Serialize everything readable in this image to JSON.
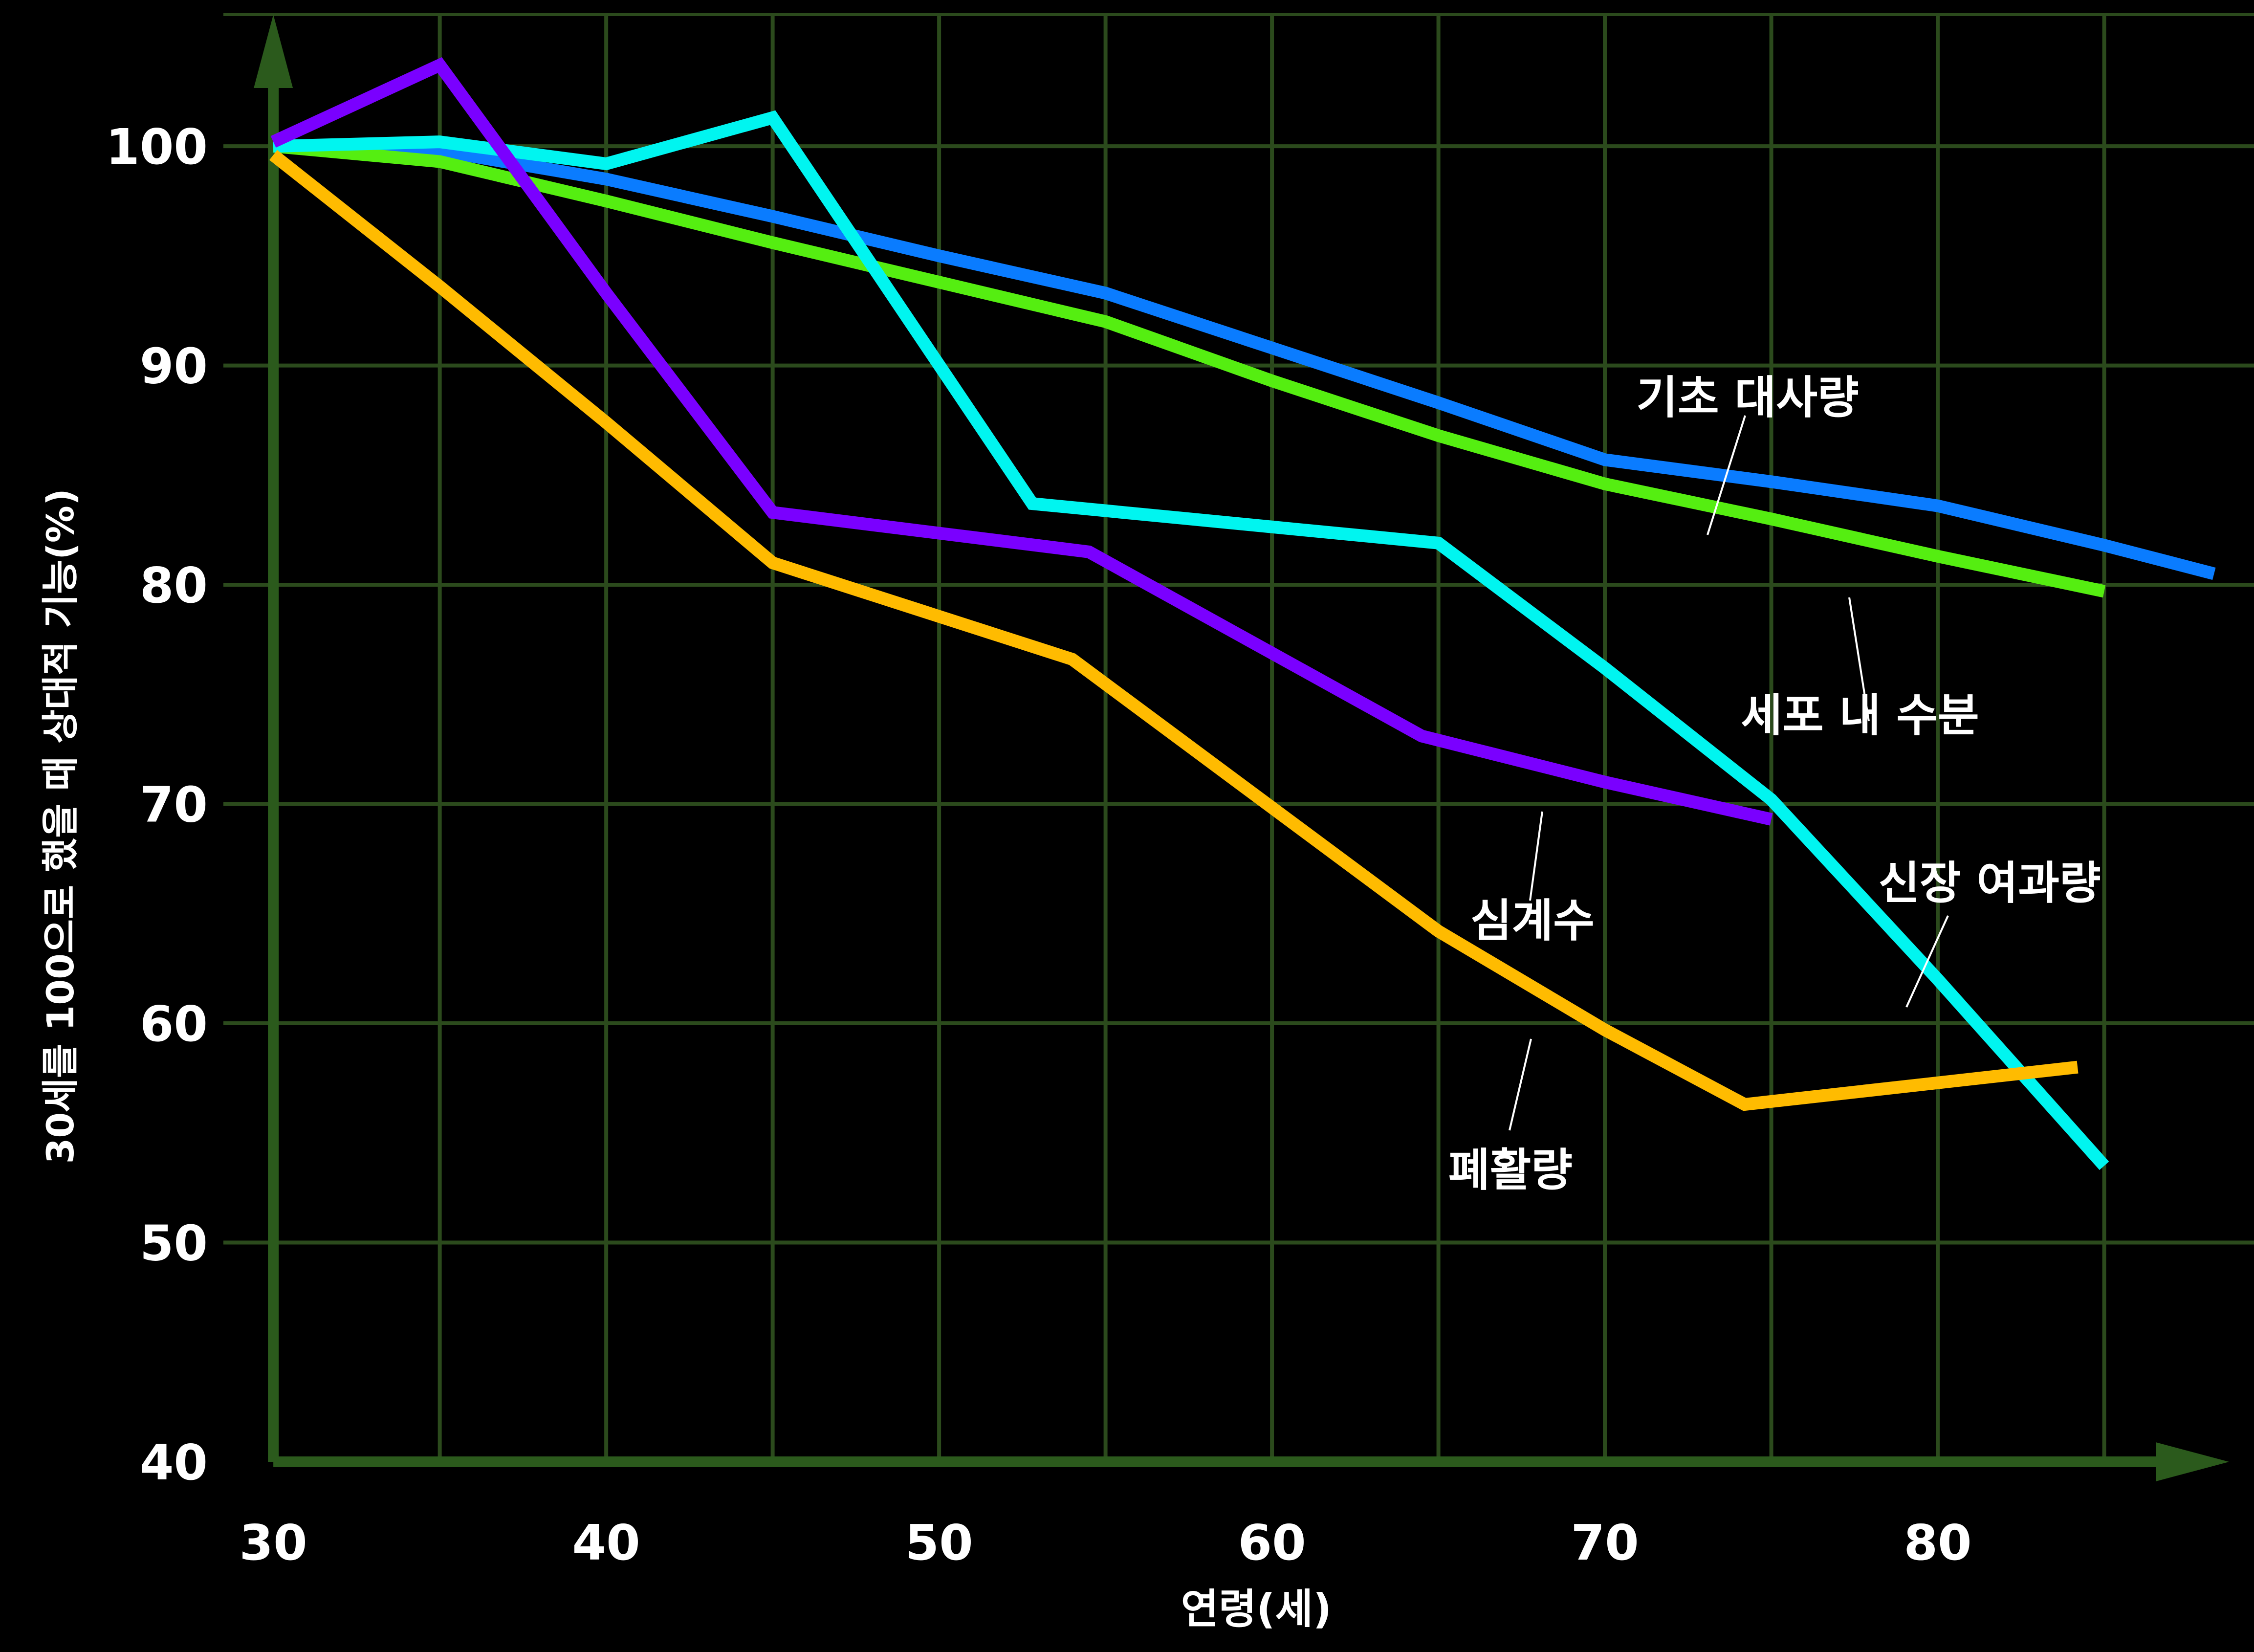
{
  "chart_data": {
    "type": "line",
    "title": "",
    "xlabel": "연령(세)",
    "ylabel": "30세를 100으로 했을 때 상대적 기능(%)",
    "xlim": [
      28.5,
      89.5
    ],
    "ylim": [
      40,
      106
    ],
    "x_ticks": [
      30,
      40,
      50,
      60,
      70,
      80
    ],
    "x_tick_labels": [
      "30",
      "40",
      "50",
      "60",
      "70",
      "80"
    ],
    "y_ticks": [
      40,
      50,
      60,
      70,
      80,
      90,
      100
    ],
    "y_tick_labels": [
      "40",
      "50",
      "60",
      "70",
      "80",
      "90",
      "100"
    ],
    "grid": true,
    "legend": "none",
    "series": [
      {
        "name": "기초 대사량",
        "color": "#0a7cff",
        "x": [
          30,
          35,
          40,
          45,
          50,
          55,
          60,
          65,
          70,
          75,
          80,
          85,
          88.3
        ],
        "y": [
          100,
          99.8,
          98.5,
          96.8,
          95,
          93.3,
          90.8,
          88.3,
          85.7,
          84.7,
          83.6,
          81.8,
          80.5
        ]
      },
      {
        "name": "세포 내 수분",
        "color": "#55ee11",
        "x": [
          30,
          35,
          40,
          45,
          50,
          55,
          60,
          65,
          70,
          75,
          80,
          85
        ],
        "y": [
          100,
          99.3,
          97.5,
          95.6,
          93.8,
          92,
          89.3,
          86.8,
          84.6,
          83,
          81.3,
          79.7
        ]
      },
      {
        "name": "신장 여과량",
        "color": "#00f5f0",
        "x": [
          30,
          35,
          40,
          45,
          52.8,
          65,
          70,
          75,
          80,
          85
        ],
        "y": [
          100,
          100.2,
          99.2,
          101.3,
          83.7,
          81.9,
          76.2,
          70.2,
          62,
          53.5
        ]
      },
      {
        "name": "심계수",
        "color": "#7a00ff",
        "x": [
          30,
          35,
          40,
          45,
          54.5,
          64.5,
          70,
          75
        ],
        "y": [
          100.2,
          103.7,
          93.3,
          83.3,
          81.5,
          73.1,
          71,
          69.3
        ]
      },
      {
        "name": "폐활량",
        "color": "#ffbb00",
        "x": [
          30,
          35,
          40,
          45,
          54,
          65,
          70,
          74.2,
          84.2
        ],
        "y": [
          99.6,
          93.6,
          87.4,
          81,
          76.6,
          64.2,
          59.7,
          56.3,
          58
        ]
      }
    ],
    "annotations": [
      {
        "text": "기초 대사량",
        "series": "기초 대사량"
      },
      {
        "text": "세포 내 수분",
        "series": "세포 내 수분"
      },
      {
        "text": "신장 여과량",
        "series": "신장 여과량"
      },
      {
        "text": "심계수",
        "series": "심계수"
      },
      {
        "text": "폐활량",
        "series": "폐활량"
      }
    ],
    "colors": {
      "background": "#000000",
      "grid": "#2b4a1c",
      "axis": "#2b5a1c",
      "text": "#ffffff"
    }
  }
}
